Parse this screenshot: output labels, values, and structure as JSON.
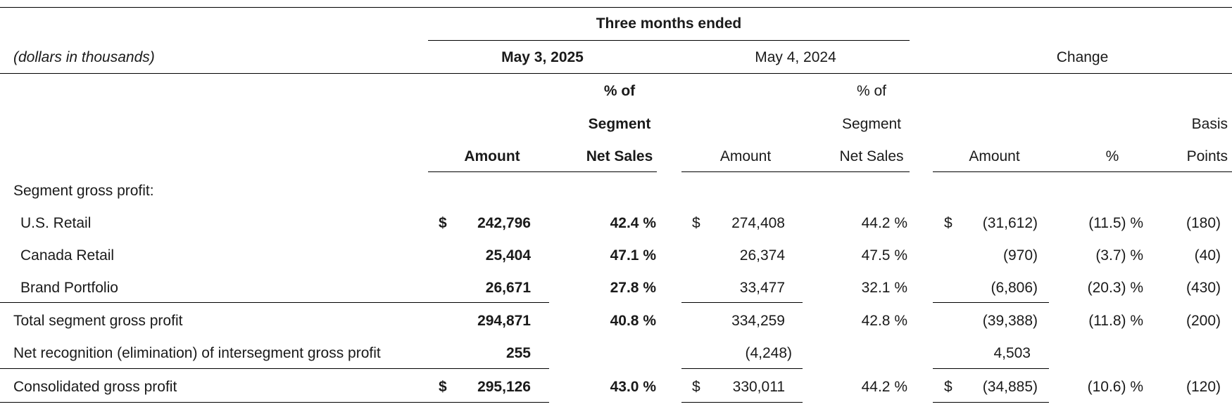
{
  "units_note": "(dollars in thousands)",
  "period_header": "Three months ended",
  "column_groups": {
    "current": "May 3, 2025",
    "prior": "May 4, 2024",
    "change": "Change"
  },
  "subheaders": {
    "pct_of_line1": "% of",
    "pct_of_line2": "Segment",
    "pct_of_line3": "Net Sales",
    "amount": "Amount",
    "basis_line1": "Basis",
    "basis_line2": "Points",
    "pct": "%"
  },
  "section_label": "Segment gross profit:",
  "currency_symbol": "$",
  "rows": [
    {
      "label": "U.S. Retail",
      "cur_amt": "242,796",
      "cur_pct": "42.4 %",
      "pri_amt": "274,408",
      "pri_pct": "44.2 %",
      "chg_amt": "(31,612)",
      "chg_pct": "(11.5) %",
      "chg_bp": "(180)"
    },
    {
      "label": "Canada Retail",
      "cur_amt": "25,404",
      "cur_pct": "47.1 %",
      "pri_amt": "26,374",
      "pri_pct": "47.5 %",
      "chg_amt": "(970)",
      "chg_pct": "(3.7) %",
      "chg_bp": "(40)"
    },
    {
      "label": "Brand Portfolio",
      "cur_amt": "26,671",
      "cur_pct": "27.8 %",
      "pri_amt": "33,477",
      "pri_pct": "32.1 %",
      "chg_amt": "(6,806)",
      "chg_pct": "(20.3) %",
      "chg_bp": "(430)"
    },
    {
      "label": "Total segment gross profit",
      "cur_amt": "294,871",
      "cur_pct": "40.8 %",
      "pri_amt": "334,259",
      "pri_pct": "42.8 %",
      "chg_amt": "(39,388)",
      "chg_pct": "(11.8) %",
      "chg_bp": "(200)"
    },
    {
      "label": "Net recognition (elimination) of intersegment gross profit",
      "cur_amt": "255",
      "cur_pct": "",
      "pri_amt": "(4,248)",
      "pri_pct": "",
      "chg_amt": "4,503",
      "chg_pct": "",
      "chg_bp": ""
    },
    {
      "label": "Consolidated gross profit",
      "cur_amt": "295,126",
      "cur_pct": "43.0 %",
      "pri_amt": "330,011",
      "pri_pct": "44.2 %",
      "chg_amt": "(34,885)",
      "chg_pct": "(10.6) %",
      "chg_bp": "(120)"
    }
  ]
}
